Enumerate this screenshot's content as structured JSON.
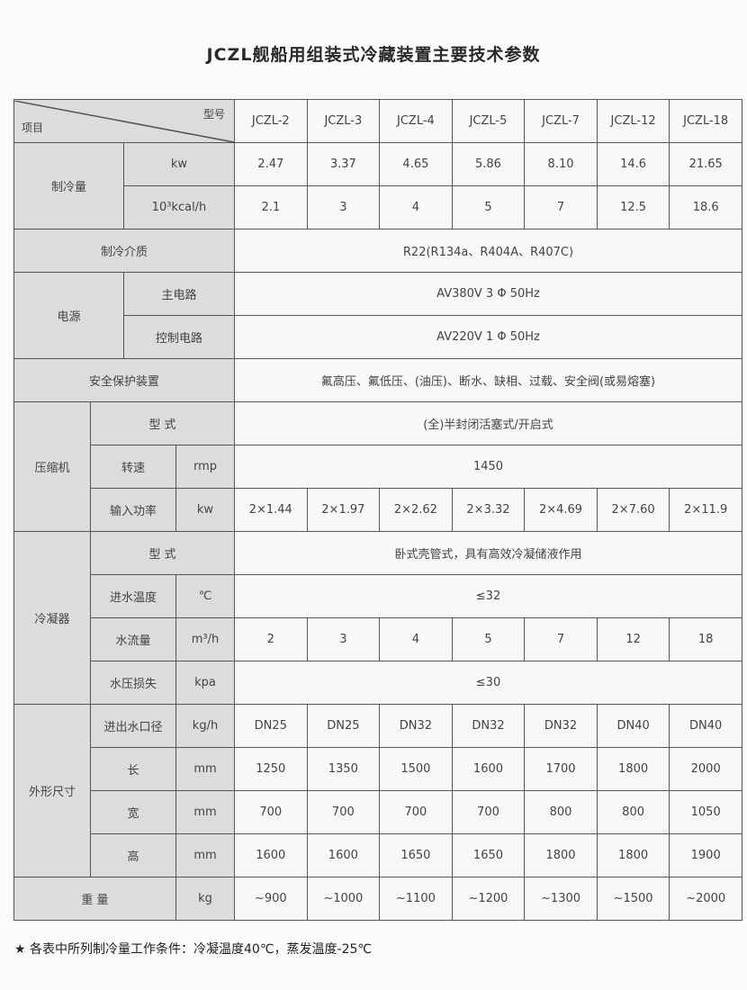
{
  "title": "JCZL舰船用组装式冷藏装置主要技术参数",
  "header": {
    "item_label": "项目",
    "model_label": "型号",
    "models": [
      "JCZL-2",
      "JCZL-3",
      "JCZL-4",
      "JCZL-5",
      "JCZL-7",
      "JCZL-12",
      "JCZL-18"
    ]
  },
  "rows": [
    {
      "group": "制冷量",
      "group_span": 2,
      "sub": "kw",
      "values": [
        "2.47",
        "3.37",
        "4.65",
        "5.86",
        "8.10",
        "14.6",
        "21.65"
      ]
    },
    {
      "sub": "10³kcal/h",
      "values": [
        "2.1",
        "3",
        "4",
        "5",
        "7",
        "12.5",
        "18.6"
      ]
    },
    {
      "label": "制冷介质",
      "merged": "R22(R134a、R404A、R407C)"
    },
    {
      "group": "电源",
      "group_span": 2,
      "sub": "主电路",
      "merged": "AV380V 3 Φ 50Hz"
    },
    {
      "sub": "控制电路",
      "merged": "AV220V 1 Φ 50Hz"
    },
    {
      "label": "安全保护装置",
      "merged": "氟高压、氟低压、(油压)、断水、缺相、过载、安全阀(或易熔塞)"
    },
    {
      "group3": "压缩机",
      "group_span": 3,
      "name": "型 式",
      "merged": "(全)半封闭活塞式/开启式"
    },
    {
      "name": "转速",
      "unit": "rmp",
      "merged": "1450"
    },
    {
      "name": "输入功率",
      "unit": "kw",
      "values": [
        "2×1.44",
        "2×1.97",
        "2×2.62",
        "2×3.32",
        "2×4.69",
        "2×7.60",
        "2×11.9"
      ]
    },
    {
      "group3": "冷凝器",
      "group_span": 4,
      "name": "型 式",
      "merged": "卧式壳管式，具有高效冷凝储液作用"
    },
    {
      "name": "进水温度",
      "unit": "℃",
      "merged": "≤32"
    },
    {
      "name": "水流量",
      "unit": "m³/h",
      "values": [
        "2",
        "3",
        "4",
        "5",
        "7",
        "12",
        "18"
      ]
    },
    {
      "name": "水压损失",
      "unit": "kpa",
      "merged": "≤30"
    },
    {
      "group3": "外形尺寸",
      "group_span": 4,
      "name": "进出水口径",
      "unit": "kg/h",
      "values": [
        "DN25",
        "DN25",
        "DN32",
        "DN32",
        "DN32",
        "DN40",
        "DN40"
      ]
    },
    {
      "name": "长",
      "unit": "mm",
      "values": [
        "1250",
        "1350",
        "1500",
        "1600",
        "1700",
        "1800",
        "2000"
      ]
    },
    {
      "name": "宽",
      "unit": "mm",
      "values": [
        "700",
        "700",
        "700",
        "700",
        "800",
        "800",
        "1050"
      ]
    },
    {
      "name": "高",
      "unit": "mm",
      "values": [
        "1600",
        "1600",
        "1650",
        "1650",
        "1800",
        "1800",
        "1900"
      ]
    },
    {
      "label3": "重 量",
      "unit": "kg",
      "values": [
        "~900",
        "~1000",
        "~1100",
        "~1200",
        "~1300",
        "~1500",
        "~2000"
      ]
    }
  ],
  "footnote": "★ 各表中所列制冷量工作条件：冷凝温度40℃，蒸发温度-25℃"
}
